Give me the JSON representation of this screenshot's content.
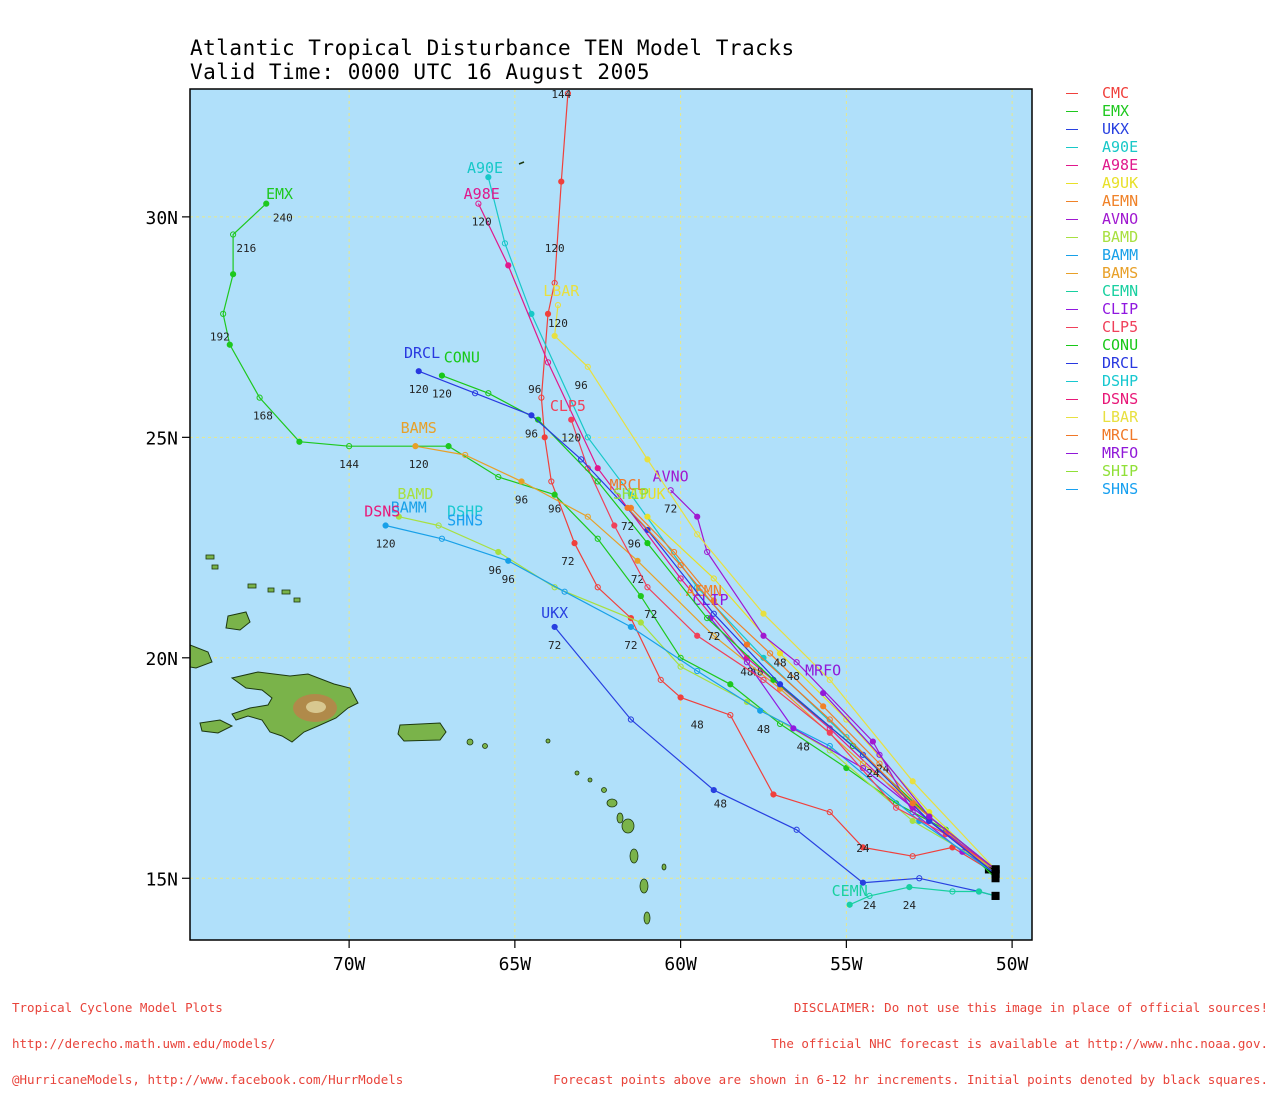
{
  "title": "Atlantic Tropical Disturbance TEN Model Tracks",
  "subtitle": "Valid Time: 0000 UTC 16 August 2005",
  "colors": {
    "ocean": "#b0e0fa",
    "land": "#7ab34a",
    "grid": "#e8e88a"
  },
  "axes": {
    "x_ticks": [
      {
        "lon": -70,
        "label": "70W"
      },
      {
        "lon": -65,
        "label": "65W"
      },
      {
        "lon": -60,
        "label": "60W"
      },
      {
        "lon": -55,
        "label": "55W"
      },
      {
        "lon": -50,
        "label": "50W"
      }
    ],
    "y_ticks": [
      {
        "lat": 15,
        "label": "15N"
      },
      {
        "lat": 20,
        "label": "20N"
      },
      {
        "lat": 25,
        "label": "25N"
      },
      {
        "lat": 30,
        "label": "30N"
      }
    ],
    "lon_range": [
      -74.8,
      -49.4
    ],
    "lat_range": [
      13.6,
      32.9
    ]
  },
  "legend": [
    {
      "name": "CMC",
      "color": "#f0403c"
    },
    {
      "name": "EMX",
      "color": "#1ec81e"
    },
    {
      "name": "UKX",
      "color": "#2840e0"
    },
    {
      "name": "A90E",
      "color": "#18c8c8"
    },
    {
      "name": "A98E",
      "color": "#e0188c"
    },
    {
      "name": "A9UK",
      "color": "#e8e028"
    },
    {
      "name": "AEMN",
      "color": "#f08228"
    },
    {
      "name": "AVNO",
      "color": "#a018d0"
    },
    {
      "name": "BAMD",
      "color": "#a8e040"
    },
    {
      "name": "BAMM",
      "color": "#18a0e8"
    },
    {
      "name": "BAMS",
      "color": "#e8a028"
    },
    {
      "name": "CEMN",
      "color": "#18d0a0"
    },
    {
      "name": "CLIP",
      "color": "#9018e0"
    },
    {
      "name": "CLP5",
      "color": "#f0405a"
    },
    {
      "name": "CONU",
      "color": "#18c818"
    },
    {
      "name": "DRCL",
      "color": "#2838e0"
    },
    {
      "name": "DSHP",
      "color": "#18c8d0"
    },
    {
      "name": "DSNS",
      "color": "#e81878"
    },
    {
      "name": "LBAR",
      "color": "#e8e040"
    },
    {
      "name": "MRCL",
      "color": "#f07828"
    },
    {
      "name": "MRFO",
      "color": "#9018d8"
    },
    {
      "name": "SHIP",
      "color": "#90e038"
    },
    {
      "name": "SHNS",
      "color": "#18a0f0"
    }
  ],
  "tracks": [
    {
      "name": "CMC",
      "label_lon": -63.7,
      "label_lat": 33.2,
      "points": [
        [
          -50.7,
          15.2
        ],
        [
          -51.8,
          15.7
        ],
        [
          -53.0,
          15.5
        ],
        [
          -54.5,
          15.7
        ],
        [
          -55.5,
          16.5
        ],
        [
          -57.2,
          16.9
        ],
        [
          -58.5,
          18.7
        ],
        [
          -60.0,
          19.1
        ],
        [
          -60.6,
          19.5
        ],
        [
          -61.5,
          20.9
        ],
        [
          -62.5,
          21.6
        ],
        [
          -63.2,
          22.6
        ],
        [
          -63.9,
          24.0
        ],
        [
          -64.1,
          25.0
        ],
        [
          -64.2,
          25.9
        ],
        [
          -64.0,
          27.8
        ],
        [
          -63.8,
          28.5
        ],
        [
          -63.6,
          30.8
        ],
        [
          -63.4,
          32.8
        ]
      ],
      "time_labels": [
        [
          "24",
          -54.5,
          15.6
        ],
        [
          "48",
          -59.5,
          18.4
        ],
        [
          "72",
          -63.4,
          22.1
        ],
        [
          "96",
          -64.4,
          26.0
        ],
        [
          "120",
          -63.8,
          29.2
        ],
        [
          "144",
          -63.6,
          32.7
        ]
      ]
    },
    {
      "name": "EMX",
      "label_lon": -72.1,
      "label_lat": 30.4,
      "points": [
        [
          -50.5,
          15.0
        ],
        [
          -52.0,
          16.1
        ],
        [
          -53.5,
          16.7
        ],
        [
          -55.0,
          17.5
        ],
        [
          -57.0,
          18.5
        ],
        [
          -58.5,
          19.4
        ],
        [
          -60.0,
          20.0
        ],
        [
          -61.2,
          21.4
        ],
        [
          -62.5,
          22.7
        ],
        [
          -63.8,
          23.7
        ],
        [
          -65.5,
          24.1
        ],
        [
          -67.0,
          24.8
        ],
        [
          -70.0,
          24.8
        ],
        [
          -71.5,
          24.9
        ],
        [
          -72.7,
          25.9
        ],
        [
          -73.6,
          27.1
        ],
        [
          -73.8,
          27.8
        ],
        [
          -73.5,
          28.7
        ],
        [
          -73.5,
          29.6
        ],
        [
          -72.5,
          30.3
        ]
      ],
      "time_labels": [
        [
          "48",
          -56.3,
          17.9
        ],
        [
          "72",
          -60.9,
          20.9
        ],
        [
          "96",
          -63.8,
          23.3
        ],
        [
          "144",
          -70.0,
          24.3
        ],
        [
          "168",
          -72.6,
          25.4
        ],
        [
          "192",
          -73.9,
          27.2
        ],
        [
          "216",
          -73.1,
          29.2
        ],
        [
          "240",
          -72.0,
          29.9
        ]
      ]
    },
    {
      "name": "UKX",
      "label_lon": -63.8,
      "label_lat": 20.9,
      "points": [
        [
          -50.5,
          14.6
        ],
        [
          -51.0,
          14.7
        ],
        [
          -52.8,
          15.0
        ],
        [
          -54.5,
          14.9
        ],
        [
          -56.5,
          16.1
        ],
        [
          -59.0,
          17.0
        ],
        [
          -61.5,
          18.6
        ],
        [
          -63.8,
          20.7
        ]
      ],
      "time_labels": [
        [
          "24",
          -54.3,
          14.3
        ],
        [
          "48",
          -58.8,
          16.6
        ],
        [
          "72",
          -63.8,
          20.2
        ]
      ]
    },
    {
      "name": "A90E",
      "label_lon": -65.9,
      "label_lat": 31.0,
      "points": [
        [
          -50.5,
          15.1
        ],
        [
          -52.5,
          16.3
        ],
        [
          -55.0,
          18.2
        ],
        [
          -57.5,
          20.0
        ],
        [
          -59.5,
          21.6
        ],
        [
          -61.5,
          23.7
        ],
        [
          -62.8,
          25.0
        ],
        [
          -64.5,
          27.8
        ],
        [
          -65.3,
          29.4
        ],
        [
          -65.8,
          30.9
        ]
      ],
      "time_labels": [
        [
          "48",
          -57.7,
          19.6
        ]
      ]
    },
    {
      "name": "A98E",
      "label_lon": -66.0,
      "label_lat": 30.4,
      "points": [
        [
          -50.5,
          15.1
        ],
        [
          -53.0,
          16.6
        ],
        [
          -55.5,
          18.4
        ],
        [
          -58.0,
          20.0
        ],
        [
          -60.0,
          21.8
        ],
        [
          -62.5,
          24.3
        ],
        [
          -64.0,
          26.7
        ],
        [
          -65.2,
          28.9
        ],
        [
          -66.1,
          30.3
        ]
      ],
      "time_labels": [
        [
          "120",
          -66.0,
          29.8
        ]
      ]
    },
    {
      "name": "A9UK",
      "label_lon": -61.0,
      "label_lat": 23.6,
      "points": [
        [
          -50.5,
          15.1
        ],
        [
          -52.5,
          16.5
        ],
        [
          -55.0,
          18.6
        ],
        [
          -57.0,
          20.1
        ],
        [
          -59.0,
          21.8
        ],
        [
          -61.0,
          23.2
        ]
      ],
      "time_labels": []
    },
    {
      "name": "AEMN",
      "label_lon": -59.3,
      "label_lat": 21.4,
      "points": [
        [
          -50.5,
          15.2
        ],
        [
          -52.5,
          16.4
        ],
        [
          -54.0,
          17.6
        ],
        [
          -55.7,
          18.9
        ],
        [
          -57.3,
          20.1
        ],
        [
          -59.0,
          21.3
        ],
        [
          -60.2,
          22.4
        ],
        [
          -61.5,
          23.4
        ]
      ],
      "time_labels": [
        [
          "24",
          -53.9,
          17.4
        ],
        [
          "48",
          -57.0,
          19.8
        ]
      ]
    },
    {
      "name": "AVNO",
      "label_lon": -60.3,
      "label_lat": 24.0,
      "points": [
        [
          -50.5,
          15.2
        ],
        [
          -51.5,
          15.6
        ],
        [
          -53.0,
          16.5
        ],
        [
          -54.2,
          18.1
        ],
        [
          -56.5,
          19.9
        ],
        [
          -57.5,
          20.5
        ],
        [
          -59.2,
          22.4
        ],
        [
          -59.5,
          23.2
        ],
        [
          -60.3,
          23.8
        ]
      ],
      "time_labels": [
        [
          "72",
          -60.3,
          23.3
        ],
        [
          "48",
          -56.6,
          19.5
        ]
      ]
    },
    {
      "name": "BAMD",
      "label_lon": -68.0,
      "label_lat": 23.6,
      "points": [
        [
          -50.5,
          15.2
        ],
        [
          -53.0,
          16.3
        ],
        [
          -55.5,
          17.9
        ],
        [
          -58.0,
          19.0
        ],
        [
          -60.0,
          19.8
        ],
        [
          -61.2,
          20.8
        ],
        [
          -63.8,
          21.6
        ],
        [
          -65.5,
          22.4
        ],
        [
          -67.3,
          23.0
        ],
        [
          -68.5,
          23.2
        ]
      ],
      "time_labels": [
        [
          "96",
          -65.6,
          21.9
        ]
      ]
    },
    {
      "name": "BAMM",
      "label_lon": -68.2,
      "label_lat": 23.3,
      "points": [
        [
          -50.5,
          15.1
        ],
        [
          -52.8,
          16.3
        ],
        [
          -55.5,
          18.0
        ],
        [
          -57.6,
          18.8
        ],
        [
          -59.5,
          19.7
        ],
        [
          -61.5,
          20.7
        ],
        [
          -63.5,
          21.5
        ],
        [
          -65.2,
          22.2
        ],
        [
          -67.2,
          22.7
        ],
        [
          -68.9,
          23.0
        ]
      ],
      "time_labels": [
        [
          "48",
          -57.5,
          18.3
        ],
        [
          "72",
          -61.5,
          20.2
        ],
        [
          "96",
          -65.2,
          21.7
        ],
        [
          "120",
          -68.9,
          22.5
        ]
      ]
    },
    {
      "name": "BAMS",
      "label_lon": -67.9,
      "label_lat": 25.1,
      "points": [
        [
          -50.5,
          15.1
        ],
        [
          -52.5,
          16.4
        ],
        [
          -54.5,
          17.6
        ],
        [
          -57.0,
          19.3
        ],
        [
          -59.0,
          20.5
        ],
        [
          -61.3,
          22.2
        ],
        [
          -62.8,
          23.2
        ],
        [
          -64.8,
          24.0
        ],
        [
          -66.5,
          24.6
        ],
        [
          -68.0,
          24.8
        ]
      ],
      "time_labels": [
        [
          "72",
          -61.3,
          21.7
        ],
        [
          "96",
          -64.8,
          23.5
        ],
        [
          "120",
          -67.9,
          24.3
        ]
      ]
    },
    {
      "name": "CEMN",
      "label_lon": -54.9,
      "label_lat": 14.6,
      "points": [
        [
          -50.5,
          14.6
        ],
        [
          -51.0,
          14.7
        ],
        [
          -51.8,
          14.7
        ],
        [
          -53.1,
          14.8
        ],
        [
          -54.3,
          14.6
        ],
        [
          -54.9,
          14.4
        ]
      ],
      "time_labels": [
        [
          "24",
          -53.1,
          14.3
        ]
      ]
    },
    {
      "name": "CLIP",
      "label_lon": -59.1,
      "label_lat": 21.2,
      "points": [
        [
          -50.5,
          15.2
        ],
        [
          -52.5,
          16.3
        ],
        [
          -54.5,
          17.5
        ],
        [
          -56.6,
          18.4
        ],
        [
          -58.0,
          19.9
        ],
        [
          -59.1,
          20.9
        ]
      ],
      "time_labels": [
        [
          "72",
          -59.0,
          20.4
        ],
        [
          "48",
          -58.0,
          19.6
        ]
      ]
    },
    {
      "name": "CLP5",
      "label_lon": -63.4,
      "label_lat": 25.6,
      "points": [
        [
          -50.5,
          15.2
        ],
        [
          -52.0,
          16.0
        ],
        [
          -53.5,
          16.6
        ],
        [
          -55.5,
          18.3
        ],
        [
          -57.5,
          19.5
        ],
        [
          -59.5,
          20.5
        ],
        [
          -61.0,
          21.6
        ],
        [
          -62.0,
          23.0
        ],
        [
          -62.8,
          24.3
        ],
        [
          -63.3,
          25.4
        ]
      ],
      "time_labels": [
        [
          "96",
          -61.4,
          22.5
        ],
        [
          "120",
          -63.3,
          24.9
        ]
      ]
    },
    {
      "name": "CONU",
      "label_lon": -66.6,
      "label_lat": 26.7,
      "points": [
        [
          -50.5,
          15.2
        ],
        [
          -52.5,
          16.4
        ],
        [
          -54.8,
          18.0
        ],
        [
          -57.2,
          19.5
        ],
        [
          -59.2,
          20.9
        ],
        [
          -61.0,
          22.6
        ],
        [
          -62.5,
          24.0
        ],
        [
          -64.3,
          25.4
        ],
        [
          -65.8,
          26.0
        ],
        [
          -67.2,
          26.4
        ]
      ],
      "time_labels": [
        [
          "120",
          -67.2,
          25.9
        ]
      ]
    },
    {
      "name": "DRCL",
      "label_lon": -67.8,
      "label_lat": 26.8,
      "points": [
        [
          -50.5,
          15.1
        ],
        [
          -52.5,
          16.3
        ],
        [
          -54.5,
          17.8
        ],
        [
          -57.0,
          19.4
        ],
        [
          -59.0,
          21.0
        ],
        [
          -61.0,
          22.9
        ],
        [
          -63.0,
          24.5
        ],
        [
          -64.5,
          25.5
        ],
        [
          -66.2,
          26.0
        ],
        [
          -67.9,
          26.5
        ]
      ],
      "time_labels": [
        [
          "96",
          -64.5,
          25.0
        ],
        [
          "120",
          -67.9,
          26.0
        ]
      ]
    },
    {
      "name": "DSHP",
      "label_lon": -66.5,
      "label_lat": 23.2,
      "points": [],
      "time_labels": []
    },
    {
      "name": "DSNS",
      "label_lon": -69.0,
      "label_lat": 23.2,
      "points": [],
      "time_labels": []
    },
    {
      "name": "LBAR",
      "label_lon": -63.6,
      "label_lat": 28.2,
      "points": [
        [
          -50.5,
          15.2
        ],
        [
          -53.0,
          17.2
        ],
        [
          -55.5,
          19.5
        ],
        [
          -57.5,
          21.0
        ],
        [
          -59.5,
          22.8
        ],
        [
          -61.0,
          24.5
        ],
        [
          -62.8,
          26.6
        ],
        [
          -63.8,
          27.3
        ],
        [
          -63.7,
          28.0
        ]
      ],
      "time_labels": [
        [
          "96",
          -63.0,
          26.1
        ],
        [
          "120",
          -63.7,
          27.5
        ]
      ]
    },
    {
      "name": "MRCL",
      "label_lon": -61.6,
      "label_lat": 23.8,
      "points": [
        [
          -50.5,
          15.2
        ],
        [
          -53.0,
          16.7
        ],
        [
          -55.5,
          18.6
        ],
        [
          -58.0,
          20.3
        ],
        [
          -60.0,
          22.1
        ],
        [
          -61.6,
          23.4
        ]
      ],
      "time_labels": [
        [
          "72",
          -61.6,
          22.9
        ]
      ]
    },
    {
      "name": "MRFO",
      "label_lon": -55.7,
      "label_lat": 19.6,
      "points": [
        [
          -50.5,
          15.2
        ],
        [
          -52.5,
          16.4
        ],
        [
          -54.0,
          17.8
        ],
        [
          -55.7,
          19.2
        ]
      ],
      "time_labels": [
        [
          "24",
          -54.2,
          17.3
        ]
      ]
    },
    {
      "name": "SHIP",
      "label_lon": -61.5,
      "label_lat": 23.6,
      "points": [],
      "time_labels": []
    },
    {
      "name": "SHNS",
      "label_lon": -66.5,
      "label_lat": 23.0,
      "points": [],
      "time_labels": []
    }
  ],
  "footer_left": [
    "Tropical Cyclone Model Plots",
    "http://derecho.math.uwm.edu/models/",
    "@HurricaneModels, http://www.facebook.com/HurrModels"
  ],
  "footer_right": [
    "DISCLAIMER: Do not use this image in place of official sources!",
    "The official NHC forecast is available at http://www.nhc.noaa.gov.",
    "Forecast points above are shown in 6-12 hr increments. Initial points denoted by black squares."
  ]
}
